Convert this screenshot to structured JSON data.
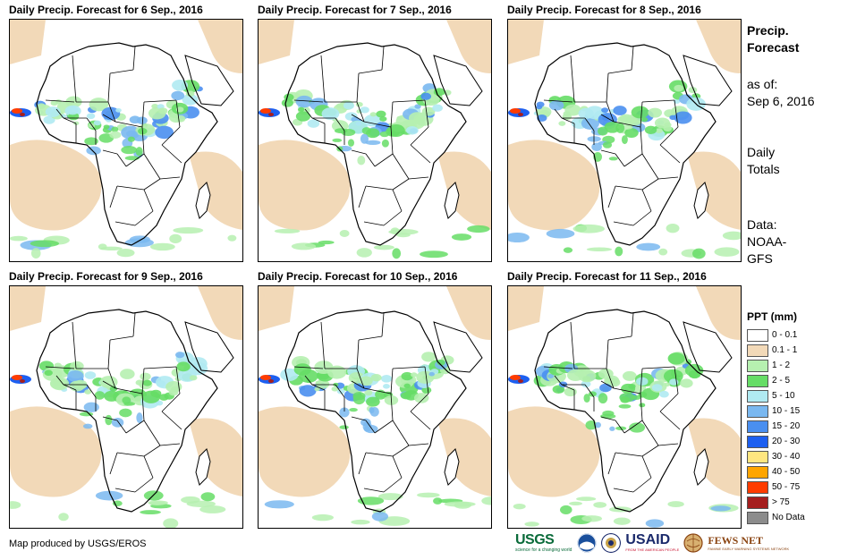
{
  "panels": [
    {
      "title": "Daily Precip. Forecast for 6 Sep., 2016"
    },
    {
      "title": "Daily Precip. Forecast for 7 Sep., 2016"
    },
    {
      "title": "Daily Precip. Forecast for 8 Sep., 2016"
    },
    {
      "title": "Daily Precip. Forecast for 9 Sep., 2016"
    },
    {
      "title": "Daily Precip. Forecast for 10 Sep., 2016"
    },
    {
      "title": "Daily Precip. Forecast for 11 Sep., 2016"
    }
  ],
  "sidebar": {
    "title_line1": "Precip.",
    "title_line2": "Forecast",
    "asof_label": "as of:",
    "asof_date": "Sep 6, 2016",
    "totals_line1": "Daily",
    "totals_line2": "Totals",
    "data_label": "Data:",
    "data_line1": "NOAA-",
    "data_line2": "GFS"
  },
  "legend": {
    "title": "PPT (mm)",
    "items": [
      {
        "label": "0 - 0.1",
        "color": "#ffffff"
      },
      {
        "label": "0.1 - 1",
        "color": "#f2d9b8"
      },
      {
        "label": "1 - 2",
        "color": "#b6f0b0"
      },
      {
        "label": "2 - 5",
        "color": "#66dd66"
      },
      {
        "label": "5 - 10",
        "color": "#b0eaf2"
      },
      {
        "label": "10 - 15",
        "color": "#7ab8f0"
      },
      {
        "label": "15 - 20",
        "color": "#4a8ff0"
      },
      {
        "label": "20 - 30",
        "color": "#1d5ff0"
      },
      {
        "label": "30 - 40",
        "color": "#ffe680"
      },
      {
        "label": "40 - 50",
        "color": "#ffa500"
      },
      {
        "label": "50 - 75",
        "color": "#ff3c00"
      },
      {
        "label": "> 75",
        "color": "#a51e1e"
      },
      {
        "label": "No Data",
        "color": "#8c8c8c"
      }
    ]
  },
  "footer": {
    "credit": "Map produced by USGS/EROS",
    "usgs": "USGS",
    "usgs_tagline": "science for a changing world",
    "usaid": "USAID",
    "usaid_tagline": "FROM THE AMERICAN PEOPLE",
    "fews": "FEWS NET",
    "fews_tagline": "FAMINE EARLY WARNING SYSTEMS NETWORK"
  }
}
